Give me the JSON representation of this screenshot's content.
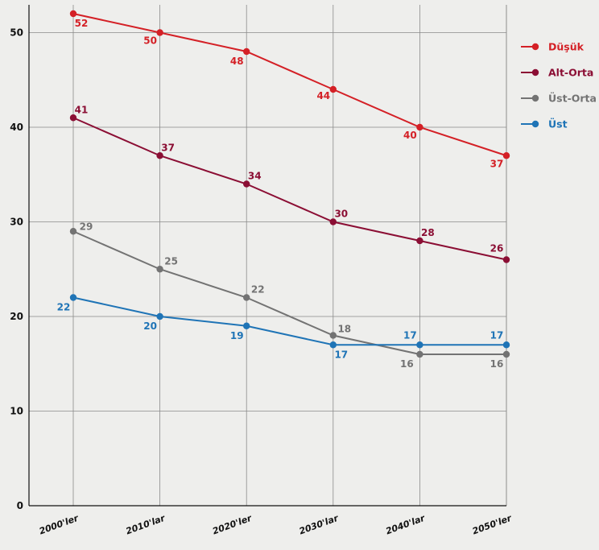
{
  "chart_data": {
    "type": "line",
    "title": "",
    "xlabel": "",
    "ylabel": "",
    "categories": [
      "2000'ler",
      "2010'lar",
      "2020'ler",
      "2030'lar",
      "2040'lar",
      "2050'ler"
    ],
    "yticks": [
      "0",
      "10",
      "20",
      "30",
      "40",
      "50"
    ],
    "ylim": [
      0,
      52
    ],
    "grid": true,
    "legend": "right",
    "series": [
      {
        "name": "Düşük",
        "color": "#d42026",
        "values": [
          52,
          50,
          48,
          44,
          40,
          37
        ],
        "labels": [
          "52",
          "50",
          "48",
          "44",
          "40",
          "37"
        ]
      },
      {
        "name": "Alt-Orta",
        "color": "#8b0e34",
        "values": [
          41,
          37,
          34,
          30,
          28,
          26
        ],
        "labels": [
          "41",
          "37",
          "34",
          "30",
          "28",
          "26"
        ]
      },
      {
        "name": "Üst-Orta",
        "color": "#737373",
        "values": [
          29,
          25,
          22,
          18,
          16,
          16
        ],
        "labels": [
          "29",
          "25",
          "22",
          "18",
          "16",
          "16"
        ]
      },
      {
        "name": "Üst",
        "color": "#1f74b6",
        "values": [
          22,
          20,
          19,
          17,
          17,
          17
        ],
        "labels": [
          "22",
          "20",
          "19",
          "17",
          "17",
          "17"
        ]
      }
    ]
  }
}
